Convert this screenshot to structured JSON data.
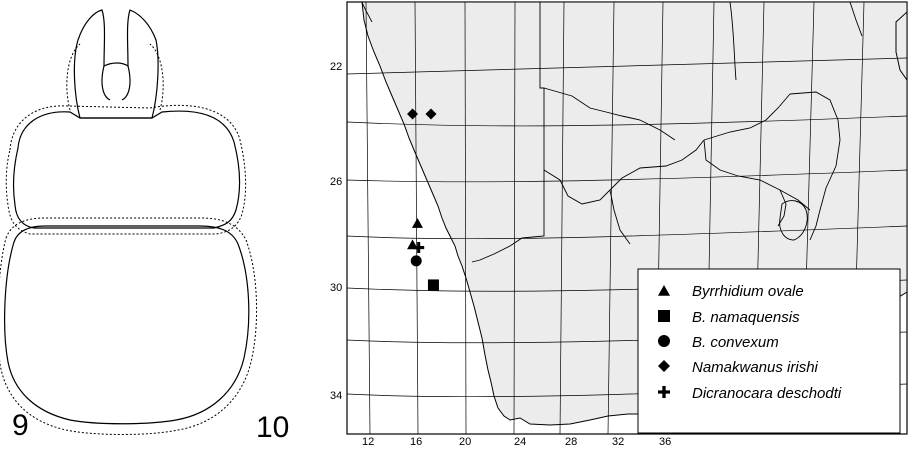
{
  "figure9": {
    "panel_number": "9"
  },
  "figure10": {
    "panel_number": "10",
    "lat_labels": [
      "22",
      "26",
      "30",
      "34"
    ],
    "lon_labels": [
      "12",
      "16",
      "20",
      "24",
      "28",
      "32",
      "36"
    ],
    "legend": [
      {
        "marker": "triangle",
        "label": "Byrrhidium ovale"
      },
      {
        "marker": "square",
        "label": "B. namaquensis"
      },
      {
        "marker": "circle",
        "label": "B. convexum"
      },
      {
        "marker": "diamond",
        "label": "Namakwanus irishi"
      },
      {
        "marker": "plus",
        "label": "Dicranocara deschodti"
      }
    ],
    "records": [
      {
        "marker": "diamond",
        "lon": 15.8,
        "lat": 23.5
      },
      {
        "marker": "diamond",
        "lon": 17.3,
        "lat": 23.5
      },
      {
        "marker": "triangle",
        "lon": 16.2,
        "lat": 27.6
      },
      {
        "marker": "triangle",
        "lon": 15.8,
        "lat": 28.4
      },
      {
        "marker": "plus",
        "lon": 16.3,
        "lat": 28.5
      },
      {
        "marker": "circle",
        "lon": 16.1,
        "lat": 29.0
      },
      {
        "marker": "square",
        "lon": 17.5,
        "lat": 29.9
      }
    ]
  }
}
